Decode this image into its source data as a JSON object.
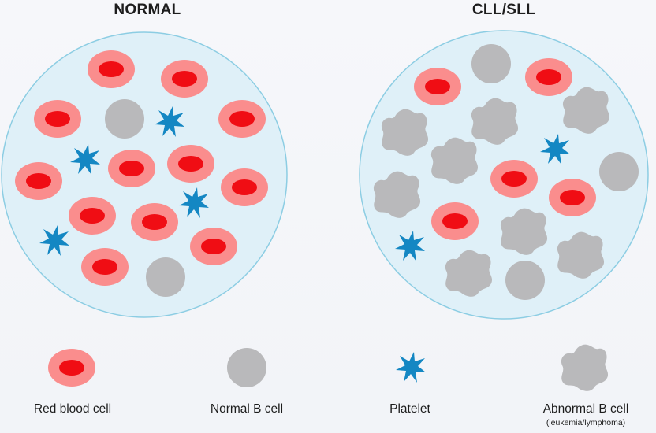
{
  "titles": {
    "normal": "NORMAL",
    "cll": "CLL/SLL"
  },
  "legend": {
    "rbc": "Red blood cell",
    "normal_b": "Normal B cell",
    "platelet": "Platelet",
    "abnormal_b": "Abnormal B cell",
    "abnormal_b_sub": "(leukemia/lymphoma)"
  },
  "colors": {
    "rbc_outer": "#fa8d8d",
    "rbc_inner": "#f00d14",
    "b_cell": "#b9b9bb",
    "platelet": "#1487c3",
    "dish_fill": "#dff0f8",
    "dish_stroke": "#8ccde3"
  }
}
